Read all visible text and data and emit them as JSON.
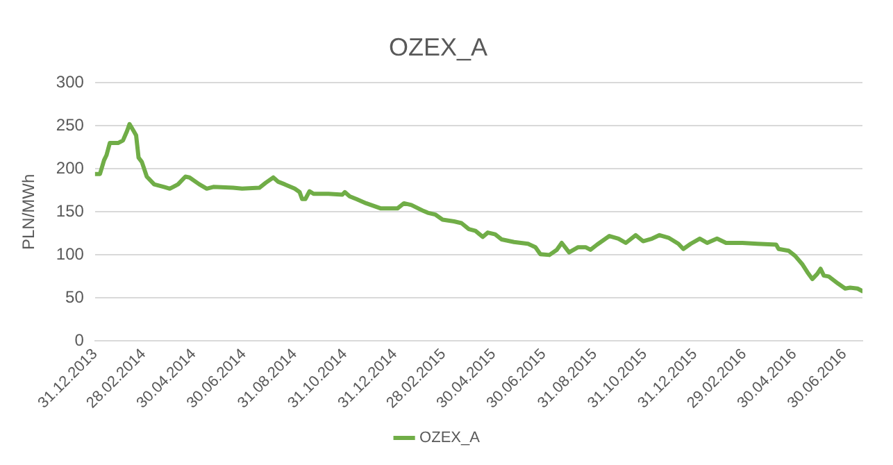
{
  "chart_data": {
    "type": "line",
    "title": "OZEX_A",
    "ylabel": "PLN/MWh",
    "x": [
      "2013-12-31",
      "2014-01-06",
      "2014-01-11",
      "2014-01-14",
      "2014-01-18",
      "2014-01-28",
      "2014-02-03",
      "2014-02-08",
      "2014-02-11",
      "2014-02-16",
      "2014-02-19",
      "2014-02-22",
      "2014-02-26",
      "2014-03-04",
      "2014-03-13",
      "2014-03-25",
      "2014-04-01",
      "2014-04-11",
      "2014-04-20",
      "2014-04-25",
      "2014-05-07",
      "2014-05-16",
      "2014-05-24",
      "2014-06-17",
      "2014-06-28",
      "2014-07-19",
      "2014-07-27",
      "2014-08-05",
      "2014-08-11",
      "2014-08-19",
      "2014-08-31",
      "2014-09-06",
      "2014-09-09",
      "2014-09-13",
      "2014-09-18",
      "2014-09-23",
      "2014-10-11",
      "2014-10-28",
      "2014-10-31",
      "2014-11-06",
      "2014-11-14",
      "2014-11-26",
      "2014-12-14",
      "2015-01-03",
      "2015-01-11",
      "2015-01-20",
      "2015-02-04",
      "2015-02-09",
      "2015-02-18",
      "2015-02-24",
      "2015-02-27",
      "2015-03-13",
      "2015-03-22",
      "2015-03-31",
      "2015-04-08",
      "2015-04-17",
      "2015-04-23",
      "2015-05-02",
      "2015-05-10",
      "2015-05-25",
      "2015-06-11",
      "2015-06-20",
      "2015-06-26",
      "2015-07-07",
      "2015-07-16",
      "2015-07-22",
      "2015-07-31",
      "2015-08-11",
      "2015-08-20",
      "2015-08-26",
      "2015-09-03",
      "2015-09-18",
      "2015-09-29",
      "2015-10-08",
      "2015-10-20",
      "2015-10-29",
      "2015-11-09",
      "2015-11-18",
      "2015-11-29",
      "2015-12-11",
      "2015-12-17",
      "2015-12-26",
      "2016-01-06",
      "2016-01-15",
      "2016-01-27",
      "2016-02-07",
      "2016-02-27",
      "2016-03-16",
      "2016-04-08",
      "2016-04-11",
      "2016-04-23",
      "2016-05-01",
      "2016-05-10",
      "2016-05-16",
      "2016-05-22",
      "2016-05-28",
      "2016-06-01",
      "2016-06-05",
      "2016-06-11",
      "2016-06-22",
      "2016-07-01",
      "2016-07-07",
      "2016-07-16",
      "2016-07-22"
    ],
    "series": [
      {
        "name": "OZEX_A",
        "color": "#70ad47",
        "values": [
          194,
          194,
          210,
          216,
          230,
          230,
          233,
          244,
          252,
          244,
          239,
          213,
          208,
          191,
          182,
          179,
          177,
          182,
          191,
          190,
          182,
          177,
          179,
          178,
          177,
          178,
          184,
          190,
          185,
          182,
          177,
          173,
          165,
          165,
          174,
          171,
          171,
          170,
          173,
          168,
          165,
          160,
          154,
          154,
          160,
          158,
          151,
          149,
          147,
          143,
          141,
          139,
          137,
          130,
          128,
          121,
          126,
          124,
          118,
          115,
          113,
          109,
          101,
          100,
          106,
          114,
          103,
          109,
          109,
          106,
          112,
          122,
          119,
          114,
          123,
          116,
          119,
          123,
          120,
          113,
          107,
          113,
          119,
          114,
          119,
          114,
          114,
          113,
          112,
          107,
          105,
          99,
          89,
          80,
          72,
          78,
          84,
          76,
          75,
          67,
          61,
          62,
          61,
          58
        ]
      }
    ],
    "xlim": [
      "2013-12-31",
      "2016-07-22"
    ],
    "xticks": [
      {
        "value": "2013-12-31",
        "label": "31.12.2013"
      },
      {
        "value": "2014-02-28",
        "label": "28.02.2014"
      },
      {
        "value": "2014-04-30",
        "label": "30.04.2014"
      },
      {
        "value": "2014-06-30",
        "label": "30.06.2014"
      },
      {
        "value": "2014-08-31",
        "label": "31.08.2014"
      },
      {
        "value": "2014-10-31",
        "label": "31.10.2014"
      },
      {
        "value": "2014-12-31",
        "label": "31.12.2014"
      },
      {
        "value": "2015-02-28",
        "label": "28.02.2015"
      },
      {
        "value": "2015-04-30",
        "label": "30.04.2015"
      },
      {
        "value": "2015-06-30",
        "label": "30.06.2015"
      },
      {
        "value": "2015-08-31",
        "label": "31.08.2015"
      },
      {
        "value": "2015-10-31",
        "label": "31.10.2015"
      },
      {
        "value": "2015-12-31",
        "label": "31.12.2015"
      },
      {
        "value": "2016-02-29",
        "label": "29.02.2016"
      },
      {
        "value": "2016-04-30",
        "label": "30.04.2016"
      },
      {
        "value": "2016-06-30",
        "label": "30.06.2016"
      }
    ],
    "ylim": [
      0,
      300
    ],
    "yticks": [
      0,
      50,
      100,
      150,
      200,
      250,
      300
    ],
    "grid": "y",
    "legend": "bottom",
    "marker": "none",
    "line_style": "solid"
  }
}
